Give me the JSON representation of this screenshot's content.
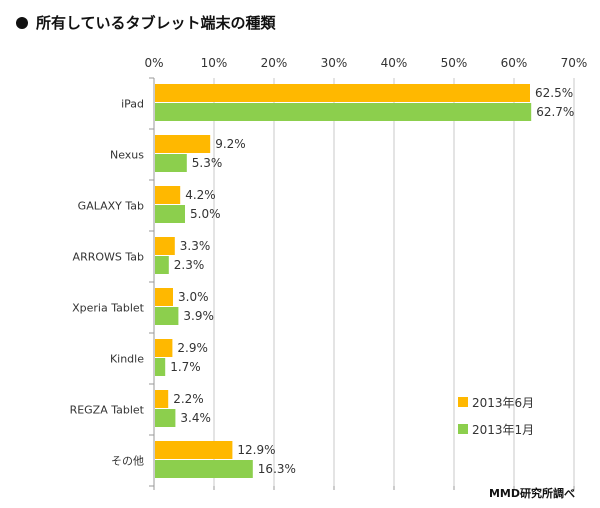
{
  "colors": {
    "series1": "#ffb800",
    "series2": "#8ccf4d"
  },
  "chart_data": {
    "type": "bar",
    "orientation": "horizontal",
    "title": "所有しているタブレット端末の種類",
    "categories": [
      "iPad",
      "Nexus",
      "GALAXY Tab",
      "ARROWS Tab",
      "Xperia Tablet",
      "Kindle",
      "REGZA Tablet",
      "その他"
    ],
    "series": [
      {
        "name": "2013年6月",
        "values": [
          62.5,
          9.2,
          4.2,
          3.3,
          3.0,
          2.9,
          2.2,
          12.9
        ],
        "labels": [
          "62.5%",
          "9.2%",
          "4.2%",
          "3.3%",
          "3.0%",
          "2.9%",
          "2.2%",
          "12.9%"
        ]
      },
      {
        "name": "2013年1月",
        "values": [
          62.7,
          5.3,
          5.0,
          2.3,
          3.9,
          1.7,
          3.4,
          16.3
        ],
        "labels": [
          "62.7%",
          "5.3%",
          "5.0%",
          "2.3%",
          "3.9%",
          "1.7%",
          "3.4%",
          "16.3%"
        ]
      }
    ],
    "xlim": [
      0,
      70
    ],
    "xticks": [
      "0%",
      "10%",
      "20%",
      "30%",
      "40%",
      "50%",
      "60%",
      "70%"
    ],
    "grid": true,
    "legend_position": "bottom-right",
    "source": "MMD研究所調べ"
  }
}
